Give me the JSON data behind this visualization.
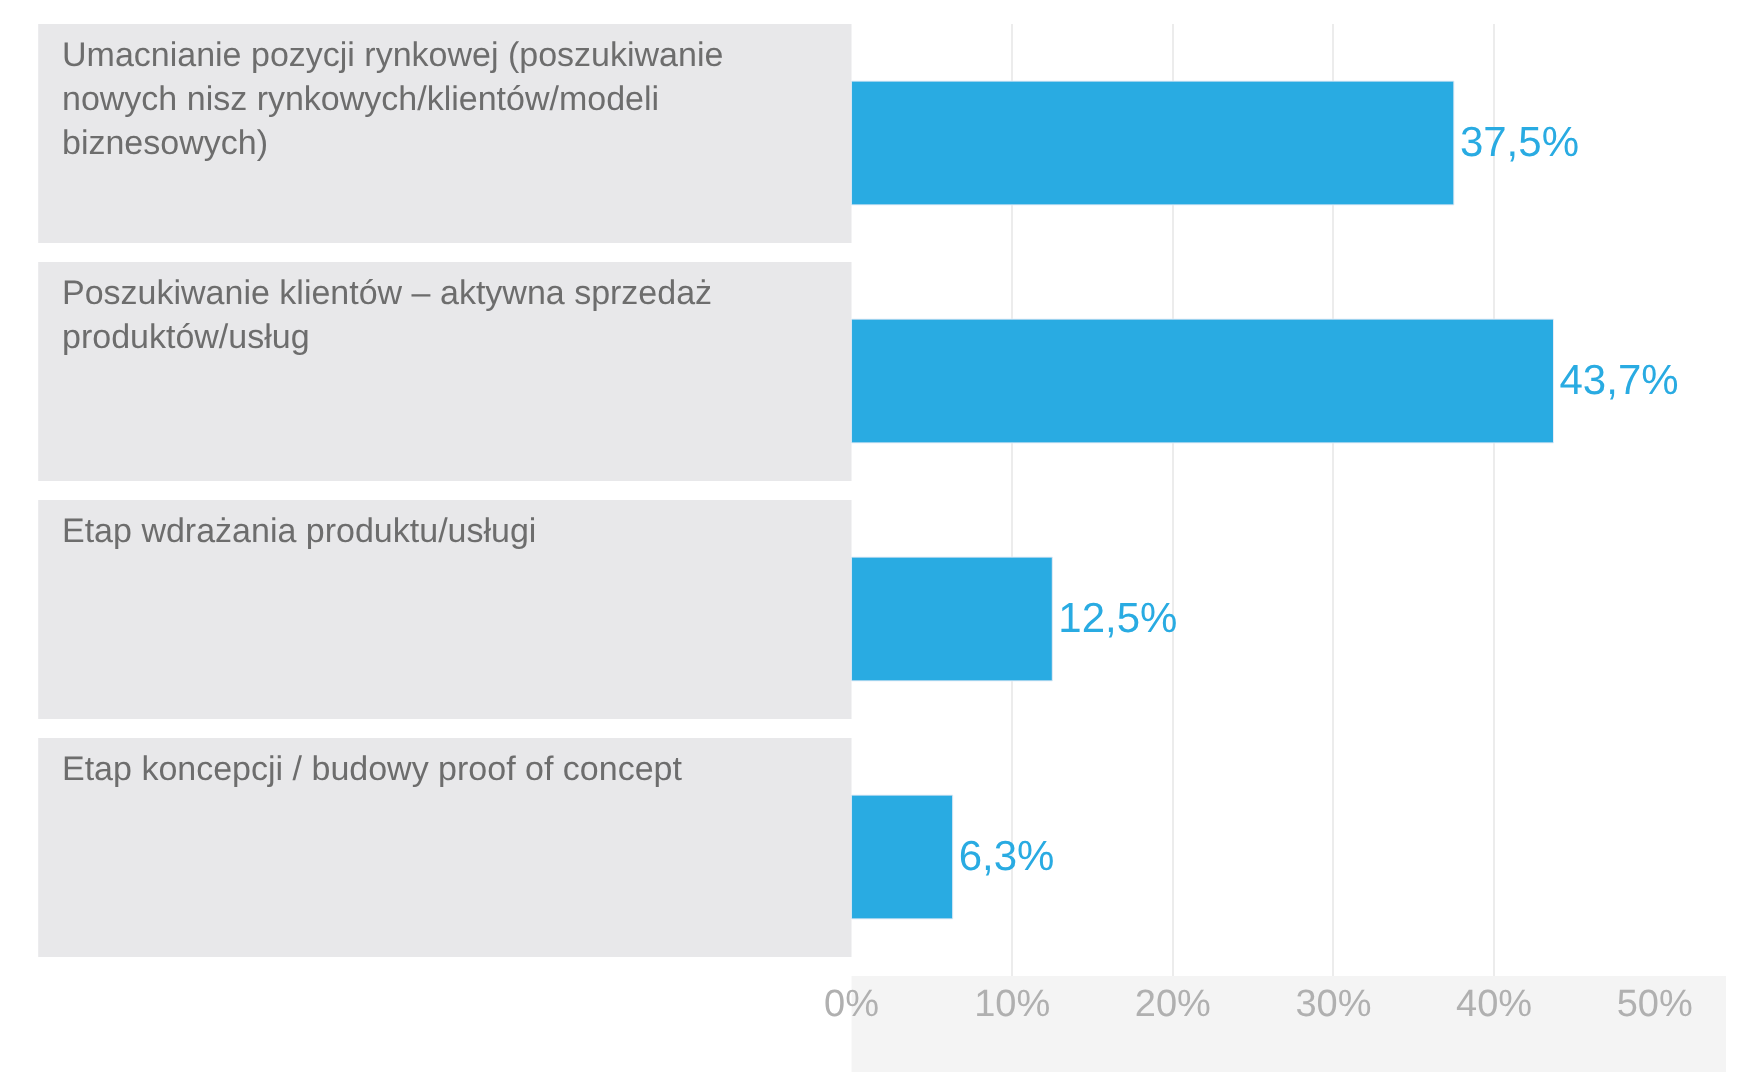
{
  "chart_data": {
    "type": "bar",
    "orientation": "horizontal",
    "categories": [
      "Umacnianie pozycji rynkowej (poszukiwanie nowych nisz rynkowych/klientów/modeli biznesowych)",
      "Poszukiwanie klientów – aktywna sprzedaż produktów/usług",
      "Etap wdrażania produktu/usługi",
      "Etap koncepcji / budowy proof of concept"
    ],
    "values": [
      37.5,
      43.7,
      12.5,
      6.3
    ],
    "value_labels": [
      "37,5%",
      "43,7%",
      "12,5%",
      "6,3%"
    ],
    "color": "#29abe2",
    "xlim": [
      0,
      50
    ],
    "xticks": [
      {
        "value": 0,
        "label": "0%"
      },
      {
        "value": 10,
        "label": "10%"
      },
      {
        "value": 20,
        "label": "20%"
      },
      {
        "value": 30,
        "label": "30%"
      },
      {
        "value": 40,
        "label": "40%"
      },
      {
        "value": 50,
        "label": "50%"
      }
    ],
    "grid": "x",
    "legend": false
  }
}
